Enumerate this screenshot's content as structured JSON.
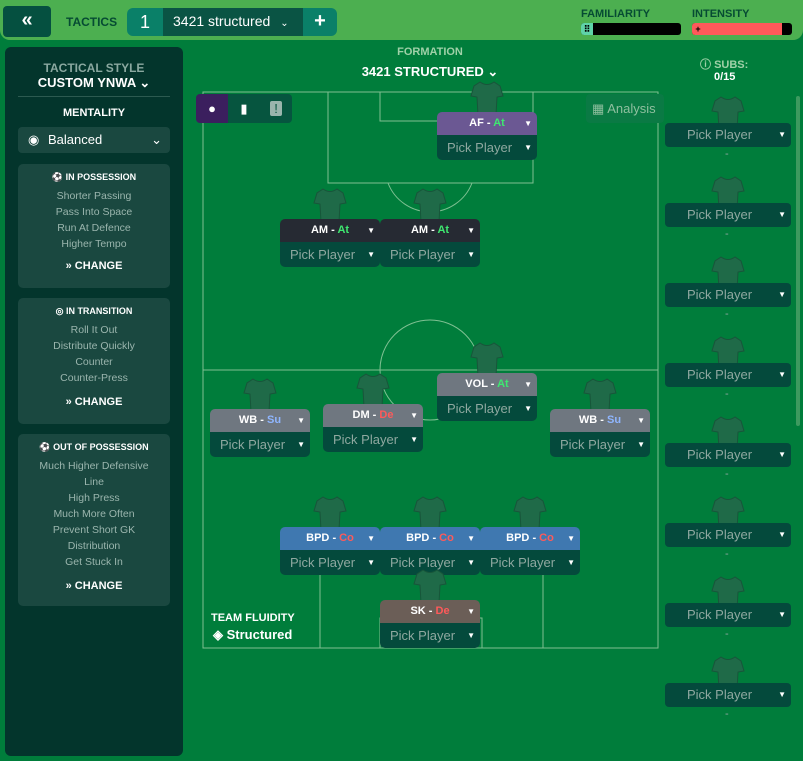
{
  "header": {
    "back_icon": "double-chevron-left",
    "title": "TACTICS",
    "tactic_number": "1",
    "tactic_name": "3421 structured",
    "add_label": "+",
    "familiarity_label": "FAMILIARITY",
    "familiarity_level": 0.12,
    "intensity_label": "INTENSITY",
    "intensity_level": 0.9
  },
  "sidebar": {
    "style_label": "TACTICAL STYLE",
    "style_value": "CUSTOM YNWA",
    "mentality_label": "MENTALITY",
    "mentality_value": "Balanced",
    "sections": [
      {
        "title": "IN POSSESSION",
        "icon": "ball",
        "items": [
          "Shorter Passing",
          "Pass Into Space",
          "Run At Defence",
          "Higher Tempo"
        ],
        "change": "CHANGE"
      },
      {
        "title": "IN TRANSITION",
        "icon": "transition",
        "items": [
          "Roll It Out",
          "Distribute Quickly",
          "Counter",
          "Counter-Press"
        ],
        "change": "CHANGE"
      },
      {
        "title": "OUT OF POSSESSION",
        "icon": "ball-dark",
        "items": [
          "Much Higher Defensive",
          "Line",
          "High Press",
          "Much More Often",
          "Prevent Short GK",
          "Distribution",
          "Get Stuck In"
        ],
        "change": "CHANGE"
      }
    ]
  },
  "formation": {
    "label": "FORMATION",
    "value": "3421 STRUCTURED",
    "analysis": "Analysis",
    "fluidity_label": "TEAM FLUIDITY",
    "fluidity_value": "Structured"
  },
  "colors": {
    "At": "#3ee870",
    "Su": "#8fb6ff",
    "De": "#ff5a5a",
    "Co": "#ff5a5a"
  },
  "players": [
    {
      "role": "AF",
      "duty": "At",
      "pick": "Pick Player",
      "bg": "#6b5893"
    },
    {
      "role": "AM",
      "duty": "At",
      "pick": "Pick Player",
      "bg": "#262a33"
    },
    {
      "role": "AM",
      "duty": "At",
      "pick": "Pick Player",
      "bg": "#262a33"
    },
    {
      "role": "VOL",
      "duty": "At",
      "pick": "Pick Player",
      "bg": "#6f7780"
    },
    {
      "role": "DM",
      "duty": "De",
      "pick": "Pick Player",
      "bg": "#6f7780"
    },
    {
      "role": "WB",
      "duty": "Su",
      "pick": "Pick Player",
      "bg": "#6f7780"
    },
    {
      "role": "WB",
      "duty": "Su",
      "pick": "Pick Player",
      "bg": "#6f7780"
    },
    {
      "role": "BPD",
      "duty": "Co",
      "pick": "Pick Player",
      "bg": "#3f78b0"
    },
    {
      "role": "BPD",
      "duty": "Co",
      "pick": "Pick Player",
      "bg": "#3f78b0"
    },
    {
      "role": "BPD",
      "duty": "Co",
      "pick": "Pick Player",
      "bg": "#3f78b0"
    },
    {
      "role": "SK",
      "duty": "De",
      "pick": "Pick Player",
      "bg": "#6b5e57"
    }
  ],
  "subs": {
    "label": "SUBS:",
    "count": "0/15",
    "slots": [
      "Pick Player",
      "Pick Player",
      "Pick Player",
      "Pick Player",
      "Pick Player",
      "Pick Player",
      "Pick Player",
      "Pick Player"
    ],
    "dash": "-"
  }
}
